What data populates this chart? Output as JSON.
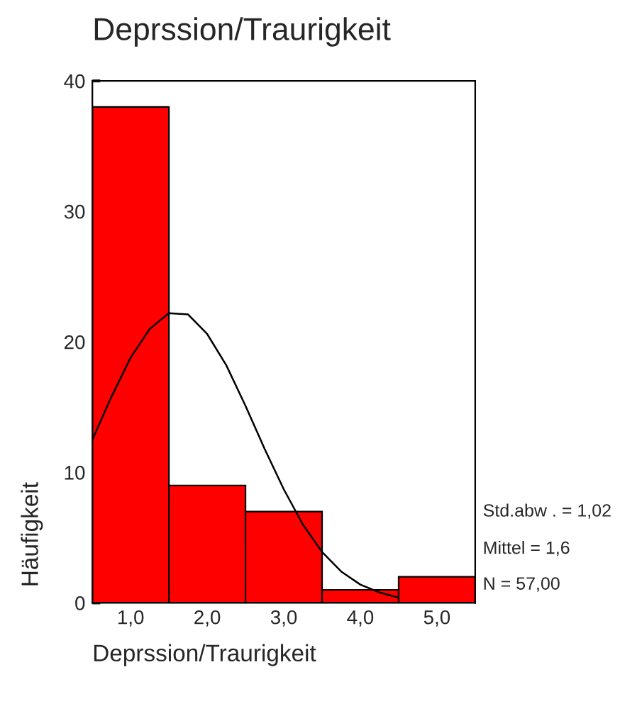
{
  "chart_data": {
    "type": "histogram",
    "title": "Deprssion/Traurigkeit",
    "xlabel": "Deprssion/Traurigkeit",
    "ylabel": "Häufigkeit",
    "bins": [
      0.5,
      1.5,
      2.5,
      3.5,
      4.5,
      5.5
    ],
    "values": [
      38,
      9,
      7,
      1,
      2
    ],
    "color": "#ff0000",
    "series": [
      {
        "type": "line",
        "color": "#000000",
        "x": [
          0.5,
          0.75,
          1.0,
          1.25,
          1.5,
          1.75,
          2.0,
          2.25,
          2.5,
          2.75,
          3.0,
          3.25,
          3.5,
          3.75,
          4.0,
          4.25,
          4.5
        ],
        "values": [
          12.5,
          15.8,
          18.8,
          21.0,
          22.2,
          22.1,
          20.6,
          18.2,
          15.1,
          11.8,
          8.7,
          6.0,
          3.9,
          2.4,
          1.4,
          0.8,
          0.4
        ]
      }
    ],
    "xlim": [
      0.5,
      5.5
    ],
    "ylim": [
      0,
      40
    ],
    "xticks": [
      {
        "value": 1,
        "label": "1,0"
      },
      {
        "value": 2,
        "label": "2,0"
      },
      {
        "value": 3,
        "label": "3,0"
      },
      {
        "value": 4,
        "label": "4,0"
      },
      {
        "value": 5,
        "label": "5,0"
      }
    ],
    "yticks": [
      0,
      10,
      20,
      30,
      40
    ],
    "grid": false,
    "legend": false,
    "annotations": [
      "Std.abw . = 1,02",
      "Mittel = 1,6",
      "N = 57,00"
    ]
  }
}
